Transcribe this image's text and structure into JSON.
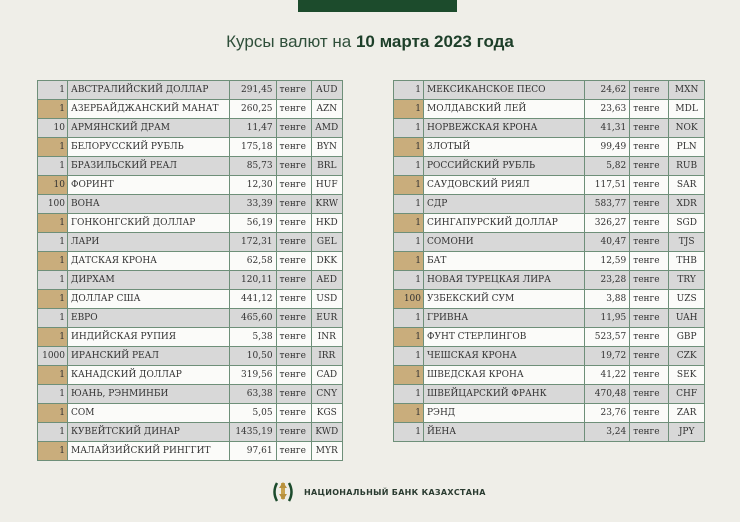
{
  "header": {
    "title_prefix": "Курсы валют на ",
    "title_date": "10 марта 2023 года"
  },
  "unit": "тенге",
  "left": [
    [
      "1",
      "АВСТРАЛИЙСКИЙ ДОЛЛАР",
      "291,45",
      "AUD"
    ],
    [
      "1",
      "АЗЕРБАЙДЖАНСКИЙ МАНАТ",
      "260,25",
      "AZN"
    ],
    [
      "10",
      "АРМЯНСКИЙ  ДРАМ",
      "11,47",
      "AMD"
    ],
    [
      "1",
      "БЕЛОРУССКИЙ РУБЛЬ",
      "175,18",
      "BYN"
    ],
    [
      "1",
      "БРАЗИЛЬСКИЙ РЕАЛ",
      "85,73",
      "BRL"
    ],
    [
      "10",
      "ФОРИНТ",
      "12,30",
      "HUF"
    ],
    [
      "100",
      "ВОНА",
      "33,39",
      "KRW"
    ],
    [
      "1",
      "ГОНКОНГСКИЙ ДОЛЛАР",
      "56,19",
      "HKD"
    ],
    [
      "1",
      "ЛАРИ",
      "172,31",
      "GEL"
    ],
    [
      "1",
      "ДАТСКАЯ КРОНА",
      "62,58",
      "DKK"
    ],
    [
      "1",
      "ДИРХАМ",
      "120,11",
      "AED"
    ],
    [
      "1",
      "ДОЛЛАР США",
      "441,12",
      "USD"
    ],
    [
      "1",
      "ЕВРО",
      "465,60",
      "EUR"
    ],
    [
      "1",
      "ИНДИЙСКАЯ РУПИЯ",
      "5,38",
      "INR"
    ],
    [
      "1000",
      "ИРАНСКИЙ РЕАЛ",
      "10,50",
      "IRR"
    ],
    [
      "1",
      "КАНАДСКИЙ ДОЛЛАР",
      "319,56",
      "CAD"
    ],
    [
      "1",
      "ЮАНЬ, РЭНМИНБИ",
      "63,38",
      "CNY"
    ],
    [
      "1",
      "СОМ",
      "5,05",
      "KGS"
    ],
    [
      "1",
      "КУВЕЙТСКИЙ ДИНАР",
      "1435,19",
      "KWD"
    ],
    [
      "1",
      "МАЛАЙЗИЙСКИЙ РИНГГИТ",
      "97,61",
      "MYR"
    ]
  ],
  "right": [
    [
      "1",
      "МЕКСИКАНСКОЕ ПЕСО",
      "24,62",
      "MXN"
    ],
    [
      "1",
      "МОЛДАВСКИЙ ЛЕЙ",
      "23,63",
      "MDL"
    ],
    [
      "1",
      "НОРВЕЖСКАЯ КРОНА",
      "41,31",
      "NOK"
    ],
    [
      "1",
      "ЗЛОТЫЙ",
      "99,49",
      "PLN"
    ],
    [
      "1",
      "РОССИЙСКИЙ РУБЛЬ",
      "5,82",
      "RUB"
    ],
    [
      "1",
      "САУДОВСКИЙ РИЯЛ",
      "117,51",
      "SAR"
    ],
    [
      "1",
      "СДР",
      "583,77",
      "XDR"
    ],
    [
      "1",
      "СИНГАПУРСКИЙ ДОЛЛАР",
      "326,27",
      "SGD"
    ],
    [
      "1",
      "СОМОНИ",
      "40,47",
      "TJS"
    ],
    [
      "1",
      "БАТ",
      "12,59",
      "THB"
    ],
    [
      "1",
      "НОВАЯ ТУРЕЦКАЯ ЛИРА",
      "23,28",
      "TRY"
    ],
    [
      "100",
      "УЗБЕКСКИЙ СУМ",
      "3,88",
      "UZS"
    ],
    [
      "1",
      "ГРИВНА",
      "11,95",
      "UAH"
    ],
    [
      "1",
      "ФУНТ СТЕРЛИНГОВ",
      "523,57",
      "GBP"
    ],
    [
      "1",
      "ЧЕШСКАЯ КРОНА",
      "19,72",
      "CZK"
    ],
    [
      "1",
      "ШВЕДСКАЯ КРОНА",
      "41,22",
      "SEK"
    ],
    [
      "1",
      "ШВЕЙЦАРСКИЙ ФРАНК",
      "470,48",
      "CHF"
    ],
    [
      "1",
      "РЭНД",
      "23,76",
      "ZAR"
    ],
    [
      "1",
      "ЙЕНА",
      "3,24",
      "JPY"
    ]
  ],
  "footer": {
    "bank_name": "НАЦИОНАЛЬНЫЙ БАНК КАЗАХСТАНА",
    "logo_icon": "national-bank-emblem-icon"
  },
  "colors": {
    "brand_green": "#1c4b2c",
    "accent_tan": "#c9ad7c",
    "row_gray": "#d8d8d8"
  }
}
